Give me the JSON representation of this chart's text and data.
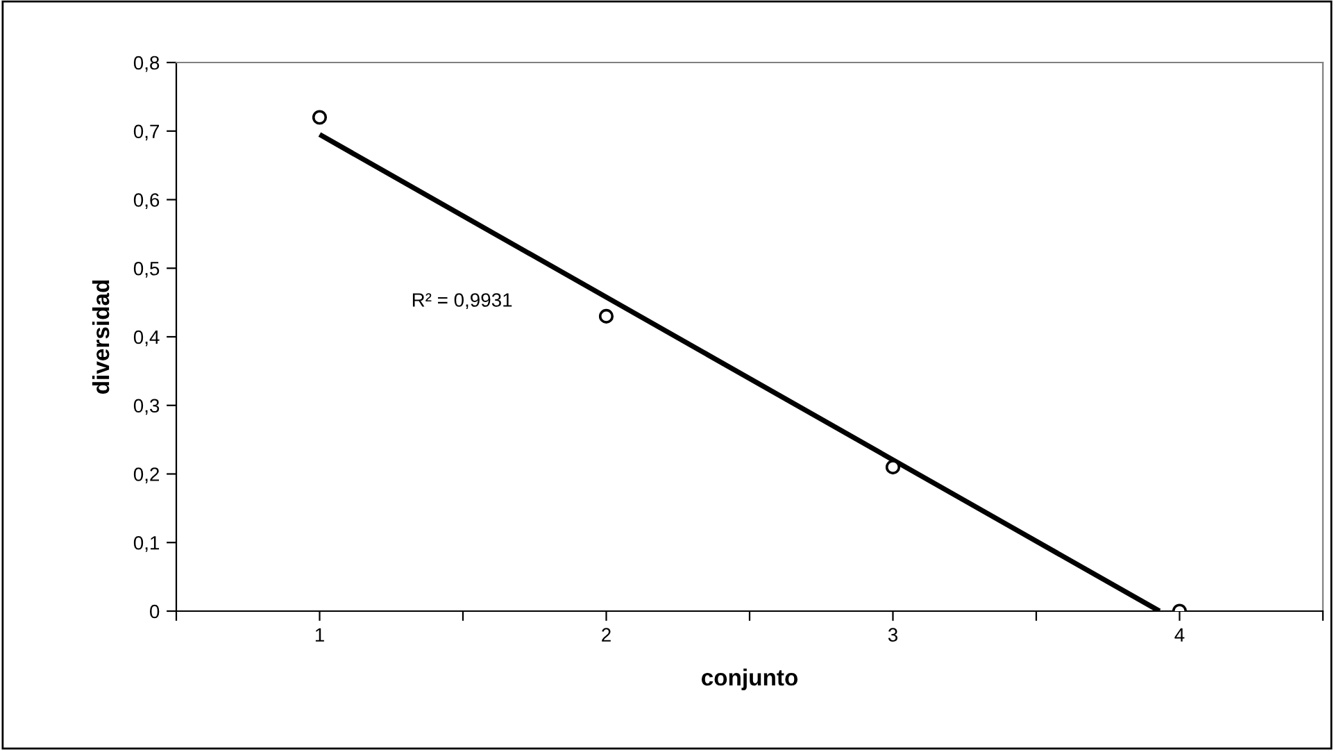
{
  "chart_data": {
    "type": "scatter",
    "xlabel": "conjunto",
    "ylabel": "diversidad",
    "x": [
      1,
      2,
      3,
      4
    ],
    "series": [
      {
        "color": "#000000",
        "marker": "circle",
        "values": [
          0.72,
          0.43,
          0.21,
          0
        ]
      },
      {
        "type": "line",
        "color": "#000000",
        "marker": "none",
        "line_style": "solid",
        "x": [
          1,
          3.93
        ],
        "values": [
          0.695,
          0
        ]
      }
    ],
    "xlim": [
      0.5,
      4.5
    ],
    "xticks": [
      {
        "value": 0.5,
        "label": null
      },
      1,
      {
        "value": 1.5,
        "label": null
      },
      2,
      {
        "value": 2.5,
        "label": null
      },
      3,
      {
        "value": 3.5,
        "label": null
      },
      4,
      {
        "value": 4.5,
        "label": null
      }
    ],
    "ylim": [
      0,
      0.8
    ],
    "yticks": [
      0,
      {
        "value": 0.1,
        "label": "0,1"
      },
      {
        "value": 0.2,
        "label": "0,2"
      },
      {
        "value": 0.3,
        "label": "0,3"
      },
      {
        "value": 0.4,
        "label": "0,4"
      },
      {
        "value": 0.5,
        "label": "0,5"
      },
      {
        "value": 0.6,
        "label": "0,6"
      },
      {
        "value": 0.7,
        "label": "0,7"
      },
      {
        "value": 0.8,
        "label": "0,8"
      }
    ],
    "annotations": [
      "R² = 0,9931"
    ],
    "grid": false
  }
}
